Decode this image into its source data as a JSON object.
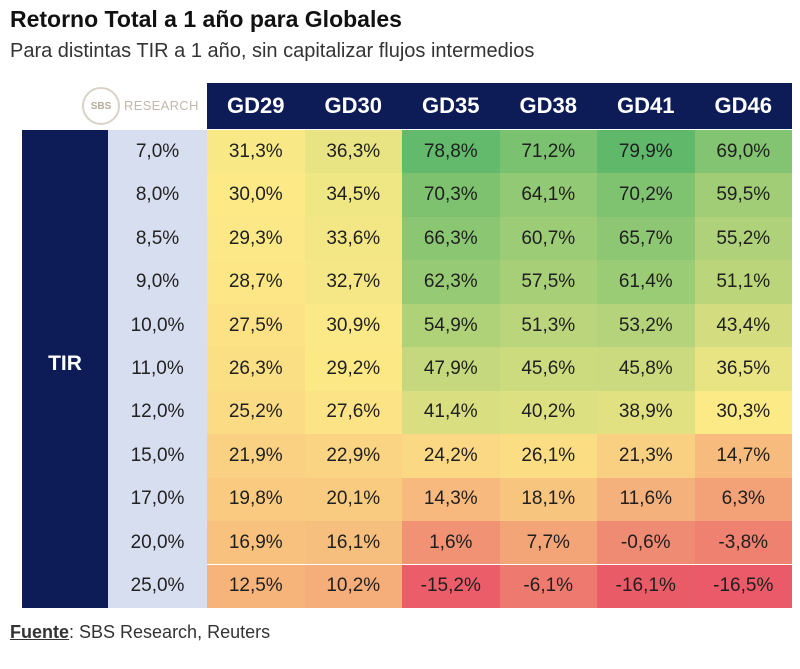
{
  "header": {
    "title": "Retorno Total a 1 año para Globales",
    "subtitle": "Para distintas TIR a 1 año, sin capitalizar flujos intermedios"
  },
  "logo": {
    "mark": "SBS",
    "text": "RESEARCH"
  },
  "footer": {
    "source_label": "Fuente",
    "source_text": ": SBS Research, Reuters"
  },
  "chart_data": {
    "type": "table",
    "title": "Retorno Total a 1 año para Globales",
    "subtitle": "Para distintas TIR a 1 año, sin capitalizar flujos intermedios",
    "row_header": "TIR",
    "columns": [
      "GD29",
      "GD30",
      "GD35",
      "GD38",
      "GD41",
      "GD46"
    ],
    "rows": [
      "7,0%",
      "8,0%",
      "8,5%",
      "9,0%",
      "10,0%",
      "11,0%",
      "12,0%",
      "15,0%",
      "17,0%",
      "20,0%",
      "25,0%"
    ],
    "cells": [
      [
        "31,3%",
        "36,3%",
        "78,8%",
        "71,2%",
        "79,9%",
        "69,0%"
      ],
      [
        "30,0%",
        "34,5%",
        "70,3%",
        "64,1%",
        "70,2%",
        "59,5%"
      ],
      [
        "29,3%",
        "33,6%",
        "66,3%",
        "60,7%",
        "65,7%",
        "55,2%"
      ],
      [
        "28,7%",
        "32,7%",
        "62,3%",
        "57,5%",
        "61,4%",
        "51,1%"
      ],
      [
        "27,5%",
        "30,9%",
        "54,9%",
        "51,3%",
        "53,2%",
        "43,4%"
      ],
      [
        "26,3%",
        "29,2%",
        "47,9%",
        "45,6%",
        "45,8%",
        "36,5%"
      ],
      [
        "25,2%",
        "27,6%",
        "41,4%",
        "40,2%",
        "38,9%",
        "30,3%"
      ],
      [
        "21,9%",
        "22,9%",
        "24,2%",
        "26,1%",
        "21,3%",
        "14,7%"
      ],
      [
        "19,8%",
        "20,1%",
        "14,3%",
        "18,1%",
        "11,6%",
        "6,3%"
      ],
      [
        "16,9%",
        "16,1%",
        "1,6%",
        "7,7%",
        "-0,6%",
        "-3,8%"
      ],
      [
        "12,5%",
        "10,2%",
        "-15,2%",
        "-6,1%",
        "-16,1%",
        "-16,5%"
      ]
    ],
    "color_scale": {
      "low": "#ea5a68",
      "mid": "#fdea87",
      "high": "#60b96b"
    }
  }
}
